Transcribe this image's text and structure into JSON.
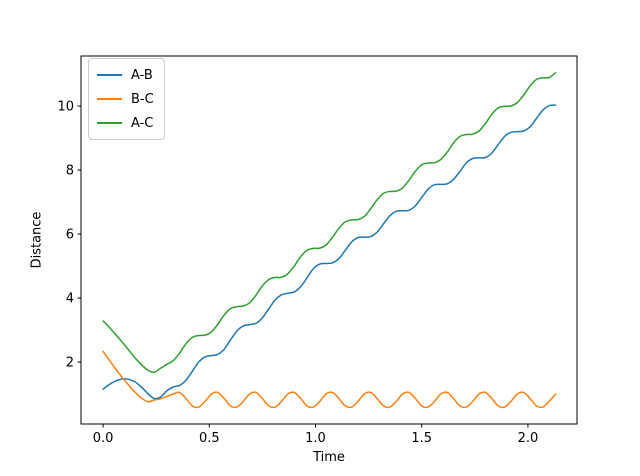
{
  "figure": {
    "background": "#ffffff",
    "frame_color": "#000000"
  },
  "legend": {
    "border_color": "#cccccc",
    "location": "upper left"
  },
  "chart_data": {
    "type": "line",
    "xlabel": "Time",
    "ylabel": "Distance",
    "xlim": [
      -0.104,
      2.231
    ],
    "ylim": [
      0.063,
      11.563
    ],
    "x_ticks": [
      0.0,
      0.5,
      1.0,
      1.5,
      2.0
    ],
    "x_tick_labels": [
      "0.0",
      "0.5",
      "1.0",
      "1.5",
      "2.0"
    ],
    "y_ticks": [
      2,
      4,
      6,
      8,
      10
    ],
    "y_tick_labels": [
      "2",
      "4",
      "6",
      "8",
      "10"
    ],
    "grid": false,
    "legend_position": "upper left",
    "line_width": 1.5,
    "x": [
      0.0,
      0.03,
      0.06,
      0.09,
      0.12,
      0.15,
      0.18,
      0.21,
      0.24,
      0.27,
      0.3,
      0.33,
      0.36,
      0.39,
      0.42,
      0.45,
      0.48,
      0.51,
      0.54,
      0.57,
      0.6,
      0.63,
      0.66,
      0.69,
      0.72,
      0.75,
      0.78,
      0.81,
      0.84,
      0.87,
      0.9,
      0.93,
      0.96,
      0.99,
      1.02,
      1.05,
      1.08,
      1.11,
      1.14,
      1.17,
      1.2,
      1.23,
      1.26,
      1.29,
      1.32,
      1.35,
      1.38,
      1.41,
      1.44,
      1.47,
      1.5,
      1.53,
      1.56,
      1.59,
      1.62,
      1.65,
      1.68,
      1.71,
      1.74,
      1.77,
      1.8,
      1.83,
      1.86,
      1.89,
      1.92,
      1.95,
      1.98,
      2.01,
      2.04,
      2.07,
      2.1,
      2.13
    ],
    "series": [
      {
        "name": "A-B",
        "color": "#1f77b4",
        "y": [
          1.15,
          1.3,
          1.41,
          1.47,
          1.46,
          1.38,
          1.22,
          1.02,
          0.86,
          0.9,
          1.1,
          1.22,
          1.27,
          1.43,
          1.71,
          2.0,
          2.16,
          2.2,
          2.24,
          2.4,
          2.69,
          2.97,
          3.13,
          3.17,
          3.21,
          3.38,
          3.66,
          3.94,
          4.1,
          4.15,
          4.19,
          4.35,
          4.63,
          4.92,
          5.06,
          5.08,
          5.1,
          5.23,
          5.49,
          5.75,
          5.89,
          5.9,
          5.92,
          6.06,
          6.32,
          6.57,
          6.71,
          6.73,
          6.74,
          6.88,
          7.14,
          7.4,
          7.54,
          7.55,
          7.57,
          7.71,
          7.96,
          8.22,
          8.36,
          8.38,
          8.39,
          8.53,
          8.79,
          9.05,
          9.18,
          9.2,
          9.22,
          9.35,
          9.61,
          9.87,
          10.01,
          10.03
        ]
      },
      {
        "name": "B-C",
        "color": "#ff7f0e",
        "y": [
          2.33,
          2.05,
          1.78,
          1.52,
          1.28,
          1.06,
          0.88,
          0.76,
          0.81,
          0.85,
          0.92,
          1.0,
          1.05,
          0.86,
          0.63,
          0.59,
          0.77,
          1.0,
          1.05,
          0.86,
          0.63,
          0.59,
          0.77,
          1.0,
          1.05,
          0.86,
          0.63,
          0.59,
          0.77,
          1.0,
          1.05,
          0.86,
          0.63,
          0.59,
          0.77,
          1.0,
          1.05,
          0.86,
          0.63,
          0.59,
          0.77,
          1.0,
          1.05,
          0.86,
          0.63,
          0.59,
          0.77,
          1.0,
          1.05,
          0.86,
          0.63,
          0.59,
          0.77,
          1.0,
          1.05,
          0.86,
          0.63,
          0.59,
          0.77,
          1.0,
          1.05,
          0.86,
          0.63,
          0.59,
          0.77,
          1.0,
          1.05,
          0.86,
          0.63,
          0.59,
          0.77,
          1.0
        ]
      },
      {
        "name": "A-C",
        "color": "#2ca02c",
        "y": [
          3.28,
          3.08,
          2.85,
          2.62,
          2.38,
          2.13,
          1.92,
          1.75,
          1.68,
          1.8,
          1.93,
          2.04,
          2.28,
          2.57,
          2.77,
          2.83,
          2.84,
          2.94,
          3.18,
          3.47,
          3.67,
          3.73,
          3.75,
          3.85,
          4.09,
          4.38,
          4.58,
          4.64,
          4.65,
          4.76,
          5.0,
          5.29,
          5.49,
          5.55,
          5.56,
          5.66,
          5.9,
          6.18,
          6.38,
          6.44,
          6.45,
          6.55,
          6.79,
          7.07,
          7.27,
          7.33,
          7.34,
          7.44,
          7.68,
          7.96,
          8.16,
          8.22,
          8.23,
          8.33,
          8.56,
          8.85,
          9.05,
          9.11,
          9.12,
          9.22,
          9.45,
          9.74,
          9.94,
          9.99,
          10.0,
          10.11,
          10.34,
          10.63,
          10.83,
          10.88,
          10.89,
          11.04
        ]
      }
    ]
  }
}
